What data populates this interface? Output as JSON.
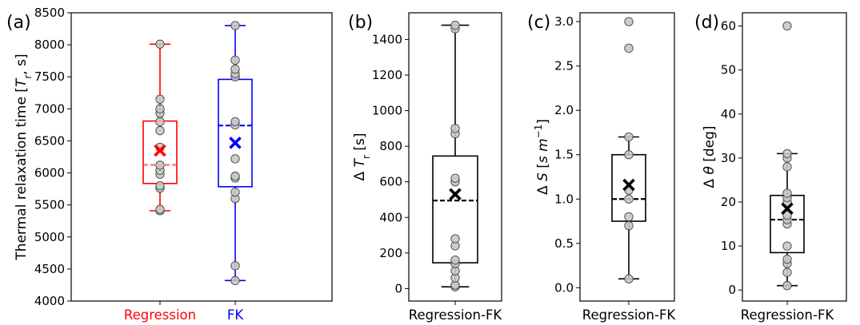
{
  "chart_data": [
    {
      "type": "box",
      "panel": "(a)",
      "ylabel": "Thermal relaxation time [T_r, s]",
      "ylim": [
        4000,
        8500
      ],
      "yticks": [
        4000,
        4500,
        5000,
        5500,
        6000,
        6500,
        7000,
        7500,
        8000,
        8500
      ],
      "grid": false,
      "categories": [
        "Regression",
        "FK"
      ],
      "series": [
        {
          "name": "Regression",
          "color": "#ff0000",
          "whisker_low": 5410,
          "q1": 5835,
          "median": 6125,
          "q3": 6810,
          "whisker_high": 8010,
          "mean": 6350,
          "points": [
            5410,
            5430,
            5760,
            5800,
            5980,
            6040,
            6120,
            6400,
            6660,
            6800,
            6930,
            7000,
            7150,
            8010
          ]
        },
        {
          "name": "FK",
          "color": "#0000ff",
          "whisker_low": 4320,
          "q1": 5785,
          "median": 6740,
          "q3": 7460,
          "whisker_high": 8300,
          "mean": 6470,
          "points": [
            4320,
            4550,
            5600,
            5700,
            5920,
            5950,
            6220,
            6750,
            6800,
            7500,
            7550,
            7620,
            7760,
            8300
          ]
        }
      ]
    },
    {
      "type": "box",
      "panel": "(b)",
      "ylabel": "Δ T_r [s]",
      "ylim": [
        -70,
        1550
      ],
      "yticks": [
        0,
        200,
        400,
        600,
        800,
        1000,
        1200,
        1400
      ],
      "grid": false,
      "categories": [
        "Regression-FK"
      ],
      "series": [
        {
          "color": "#000000",
          "whisker_low": 10,
          "q1": 145,
          "median": 495,
          "q3": 745,
          "whisker_high": 1480,
          "mean": 530,
          "points": [
            10,
            20,
            60,
            100,
            140,
            160,
            240,
            280,
            600,
            620,
            870,
            900,
            1460,
            1480
          ]
        }
      ]
    },
    {
      "type": "box",
      "panel": "(c)",
      "ylabel": "Δ S [s m⁻¹]",
      "ylim": [
        -0.15,
        3.1
      ],
      "yticks": [
        0.0,
        0.5,
        1.0,
        1.5,
        2.0,
        2.5,
        3.0
      ],
      "grid": false,
      "categories": [
        "Regression-FK"
      ],
      "series": [
        {
          "color": "#000000",
          "whisker_low": 0.1,
          "q1": 0.75,
          "median": 1.0,
          "q3": 1.5,
          "whisker_high": 1.7,
          "mean": 1.16,
          "points": [
            0.1,
            0.7,
            0.8,
            1.0,
            1.1,
            1.5,
            1.7,
            2.7,
            3.0
          ]
        }
      ]
    },
    {
      "type": "box",
      "panel": "(d)",
      "ylabel": "Δ θ [deg]",
      "ylim": [
        -2.5,
        63
      ],
      "yticks": [
        0,
        10,
        20,
        30,
        40,
        50,
        60
      ],
      "grid": false,
      "categories": [
        "Regression-FK"
      ],
      "series": [
        {
          "color": "#000000",
          "whisker_low": 1,
          "q1": 8.5,
          "median": 16,
          "q3": 21.5,
          "whisker_high": 31,
          "mean": 18.5,
          "points": [
            1,
            4,
            6,
            7,
            10,
            15,
            16,
            17,
            20,
            21,
            22,
            28,
            30,
            31,
            60
          ]
        }
      ]
    }
  ]
}
